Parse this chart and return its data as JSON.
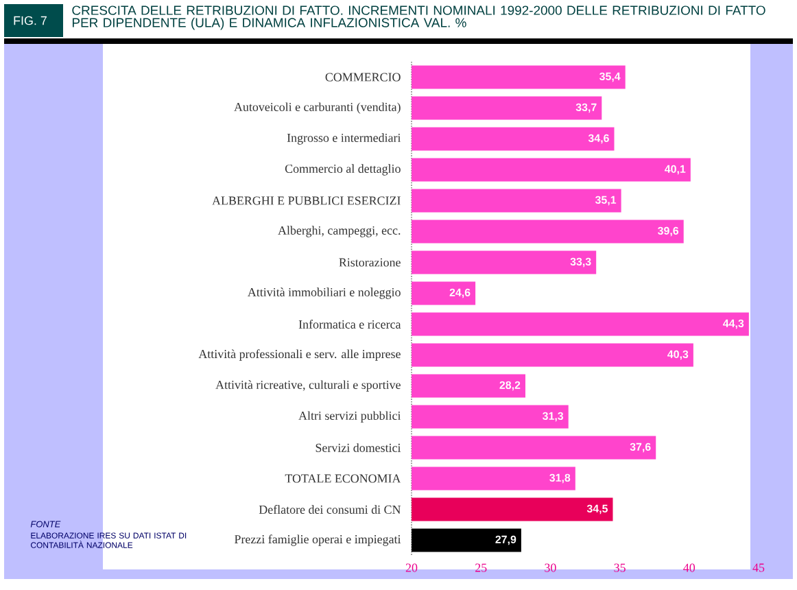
{
  "chart_data": {
    "type": "bar",
    "orientation": "horizontal",
    "title": "CRESCITA DELLE RETRIBUZIONI DI FATTO. INCREMENTI NOMINALI 1992-2000 DELLE RETRIBUZIONI DI FATTO PER DIPENDENTE (ULA) E DINAMICA INFLAZIONISTICA   VAL. %",
    "categories": [
      "COMMERCIO",
      "Autoveicoli e carburanti (vendita)",
      "Ingrosso e intermediari",
      "Commercio al dettaglio",
      "ALBERGHI E PUBBLICI ESERCIZI",
      "Alberghi, campeggi, ecc.",
      "Ristorazione",
      "Attività immobiliari e noleggio",
      "Informatica e ricerca",
      "Attività professionali e serv. alle imprese",
      "Attività ricreative, culturali e sportive",
      "Altri servizi pubblici",
      "Servizi domestici",
      "TOTALE ECONOMIA",
      "Deflatore dei consumi di CN",
      "Prezzi famiglie operai e impiegati"
    ],
    "values": [
      35.4,
      33.7,
      34.6,
      40.1,
      35.1,
      39.6,
      33.3,
      24.6,
      44.3,
      40.3,
      28.2,
      31.3,
      37.6,
      31.8,
      34.5,
      27.9
    ],
    "value_labels": [
      "35,4",
      "33,7",
      "34,6",
      "40,1",
      "35,1",
      "39,6",
      "33,3",
      "24,6",
      "44,3",
      "40,3",
      "28,2",
      "31,3",
      "37,6",
      "31,8",
      "34,5",
      "27,9"
    ],
    "colors": [
      "#ff44cc",
      "#ff44cc",
      "#ff44cc",
      "#ff44cc",
      "#ff44cc",
      "#ff44cc",
      "#ff44cc",
      "#ff44cc",
      "#ff44cc",
      "#ff44cc",
      "#ff44cc",
      "#ff44cc",
      "#ff44cc",
      "#ff44cc",
      "#e8005a",
      "#000000"
    ],
    "xlim": [
      20,
      45
    ],
    "xticks": [
      20,
      25,
      30,
      35,
      40,
      45
    ],
    "annotations": [
      "FIG. 7",
      "FONTE",
      "ELABORAZIONE IRES SU DATI ISTAT DI CONTABILITÀ NAZIONALE"
    ]
  }
}
